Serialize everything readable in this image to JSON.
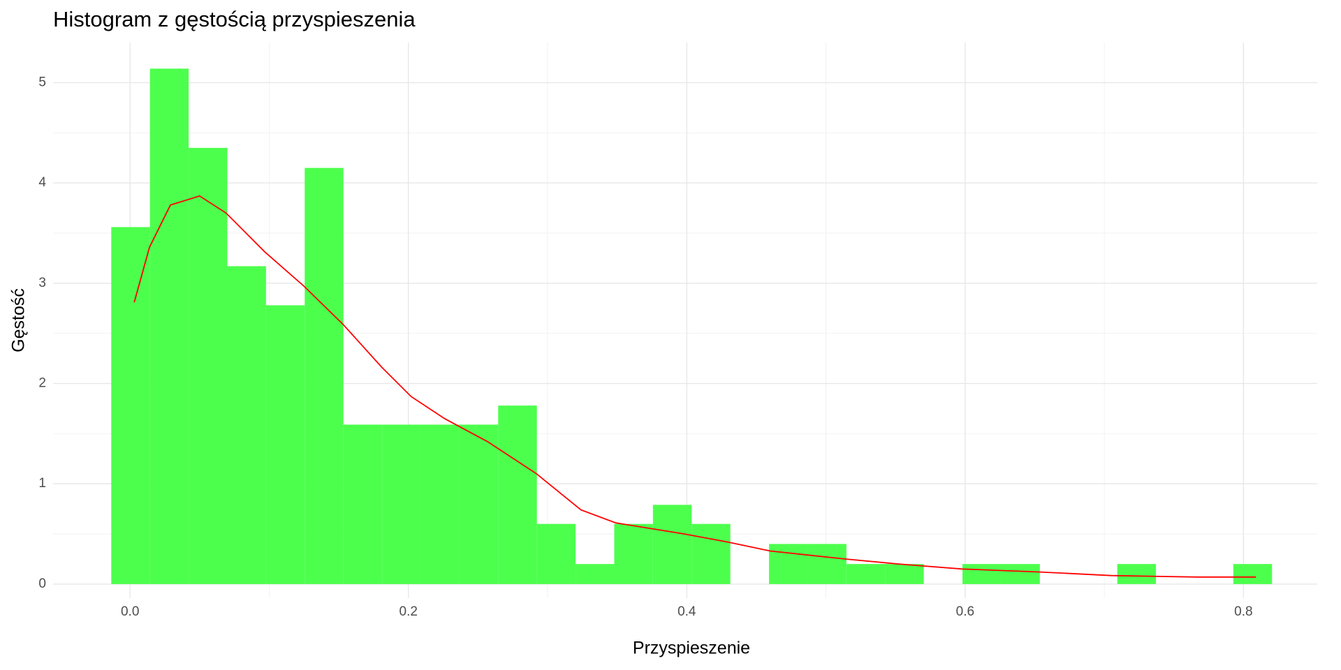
{
  "chart_data": {
    "type": "histogram",
    "title": "Histogram z gęstością przyspieszenia",
    "x_label": "Przyspieszenie",
    "y_label": "Gęstość",
    "bins": [
      -0.0135,
      0.0143,
      0.0421,
      0.0699,
      0.0977,
      0.1255,
      0.1533,
      0.1811,
      0.2089,
      0.2367,
      0.2645,
      0.2923,
      0.3201,
      0.3479,
      0.3757,
      0.4035,
      0.4313,
      0.4591,
      0.4869,
      0.5147,
      0.5425,
      0.5703,
      0.5981,
      0.6259,
      0.6537,
      0.6815,
      0.7093,
      0.7371,
      0.7649,
      0.7927,
      0.8205
    ],
    "values": [
      3.56,
      5.14,
      4.35,
      3.17,
      2.78,
      4.15,
      1.59,
      1.59,
      1.59,
      1.59,
      1.78,
      0.6,
      0.2,
      0.6,
      0.79,
      0.6,
      0,
      0.4,
      0.4,
      0.2,
      0.2,
      0,
      0.2,
      0.2,
      0,
      0,
      0.2,
      0,
      0,
      0.2
    ],
    "color": "#4dff4d",
    "density": {
      "x": [
        0.003,
        0.014,
        0.029,
        0.05,
        0.069,
        0.097,
        0.125,
        0.153,
        0.181,
        0.202,
        0.226,
        0.257,
        0.292,
        0.324,
        0.349,
        0.398,
        0.429,
        0.46,
        0.514,
        0.552,
        0.598,
        0.654,
        0.705,
        0.767,
        0.809
      ],
      "values": [
        2.81,
        3.36,
        3.78,
        3.87,
        3.7,
        3.31,
        2.97,
        2.59,
        2.16,
        1.87,
        1.65,
        1.42,
        1.1,
        0.74,
        0.61,
        0.5,
        0.42,
        0.33,
        0.25,
        0.2,
        0.15,
        0.12,
        0.085,
        0.07,
        0.07
      ],
      "color": "#ff0000"
    },
    "xlim": [
      -0.0553,
      0.853
    ],
    "ylim": [
      -0.14,
      5.4
    ],
    "xticks": [
      {
        "value": 0,
        "label": "0.0"
      },
      0.2,
      0.4,
      0.6,
      0.8
    ],
    "yticks": [
      0,
      1,
      2,
      3,
      4,
      5
    ],
    "grid": true
  }
}
